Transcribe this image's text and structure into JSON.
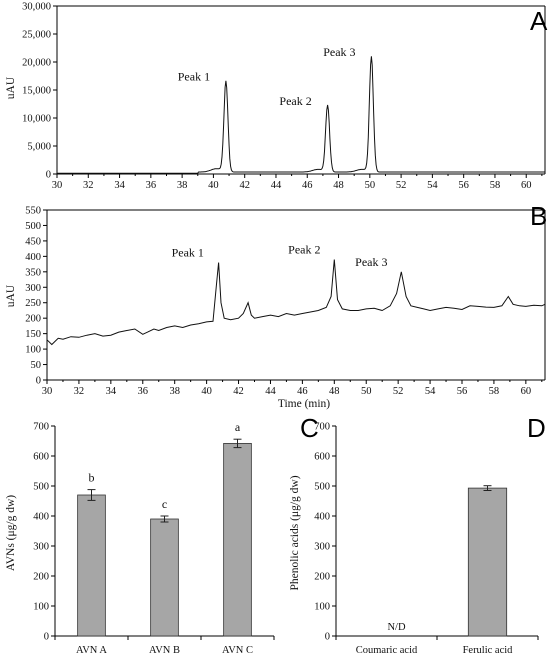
{
  "chart_data": [
    {
      "type": "line",
      "panel": "A",
      "xlabel": "",
      "ylabel": "uAU",
      "xlim": [
        30,
        61.2
      ],
      "ylim": [
        0,
        30000
      ],
      "x_ticks": [
        "30",
        "32",
        "34",
        "36",
        "38",
        "40",
        "42",
        "44",
        "46",
        "48",
        "50",
        "52",
        "54",
        "56",
        "58",
        "60"
      ],
      "y_ticks": [
        "0",
        "5,000",
        "10,000",
        "15,000",
        "20,000",
        "25,000",
        "30,000"
      ],
      "annotations": [
        {
          "text": "Peak 1",
          "x": 40.8,
          "y": 16300
        },
        {
          "text": "Peak 2",
          "x": 47.3,
          "y": 12000
        },
        {
          "text": "Peak 3",
          "x": 50.1,
          "y": 20700
        }
      ],
      "peaks": [
        {
          "x": 40.8,
          "y": 16300
        },
        {
          "x": 47.3,
          "y": 12000
        },
        {
          "x": 50.1,
          "y": 20700
        }
      ],
      "baseline": 150
    },
    {
      "type": "line",
      "panel": "B",
      "xlabel": "Time (min)",
      "ylabel": "uAU",
      "xlim": [
        30,
        61.2
      ],
      "ylim": [
        0,
        550
      ],
      "x_ticks": [
        "30",
        "32",
        "34",
        "36",
        "38",
        "40",
        "42",
        "44",
        "46",
        "48",
        "50",
        "52",
        "54",
        "56",
        "58",
        "60"
      ],
      "y_ticks": [
        "0",
        "50",
        "100",
        "150",
        "200",
        "250",
        "300",
        "350",
        "400",
        "450",
        "500",
        "550"
      ],
      "annotations": [
        {
          "text": "Peak 1",
          "x": 40.7,
          "y": 380
        },
        {
          "text": "Peak 2",
          "x": 48.0,
          "y": 390
        },
        {
          "text": "Peak 3",
          "x": 52.2,
          "y": 350
        }
      ],
      "series": [
        {
          "x": [
            30,
            30.3,
            30.7,
            31,
            31.5,
            32,
            32.5,
            33,
            33.5,
            34,
            34.5,
            35,
            35.5,
            36,
            36.3,
            36.7,
            37,
            37.5,
            38,
            38.5,
            39,
            39.5,
            40,
            40.4,
            40.6,
            40.75,
            40.9,
            41.1,
            41.5,
            42,
            42.3,
            42.6,
            42.8,
            43,
            43.5,
            44,
            44.5,
            45,
            45.5,
            46,
            46.5,
            47,
            47.5,
            47.8,
            48,
            48.2,
            48.5,
            49,
            49.5,
            50,
            50.5,
            51,
            51.5,
            51.9,
            52.2,
            52.5,
            52.8,
            53.2,
            53.6,
            54,
            54.5,
            55,
            55.5,
            56,
            56.5,
            57,
            57.5,
            58,
            58.5,
            58.9,
            59.2,
            59.6,
            60,
            60.5,
            61,
            61.2
          ],
          "y": [
            130,
            115,
            135,
            132,
            140,
            138,
            145,
            150,
            142,
            145,
            155,
            160,
            165,
            148,
            155,
            165,
            160,
            170,
            175,
            170,
            178,
            182,
            188,
            190,
            300,
            380,
            250,
            200,
            195,
            200,
            215,
            250,
            210,
            200,
            205,
            210,
            205,
            215,
            210,
            215,
            220,
            225,
            235,
            270,
            390,
            260,
            230,
            225,
            225,
            230,
            232,
            225,
            240,
            280,
            350,
            270,
            240,
            235,
            230,
            225,
            230,
            235,
            232,
            228,
            240,
            238,
            236,
            235,
            240,
            270,
            245,
            240,
            238,
            242,
            240,
            245
          ]
        }
      ]
    },
    {
      "type": "bar",
      "panel": "C",
      "ylabel": "AVNs (μg/g dw)",
      "categories": [
        "AVN A",
        "AVN B",
        "AVN C"
      ],
      "values": [
        470,
        390,
        642
      ],
      "errors": [
        18,
        10,
        14
      ],
      "letters": [
        "b",
        "c",
        "a"
      ],
      "ylim": [
        0,
        700
      ],
      "y_ticks": [
        "0",
        "100",
        "200",
        "300",
        "400",
        "500",
        "600",
        "700"
      ]
    },
    {
      "type": "bar",
      "panel": "D",
      "ylabel": "Phenolic acids (μg/g dw)",
      "categories": [
        "Coumaric acid",
        "Ferulic acid"
      ],
      "values": [
        0,
        493
      ],
      "errors": [
        0,
        8
      ],
      "value_labels": [
        "N/D",
        ""
      ],
      "ylim": [
        0,
        700
      ],
      "y_ticks": [
        "0",
        "100",
        "200",
        "300",
        "400",
        "500",
        "600",
        "700"
      ]
    }
  ],
  "colors": {
    "bar_fill": "#a6a6a6",
    "line": "#111111",
    "axis": "#000000"
  }
}
